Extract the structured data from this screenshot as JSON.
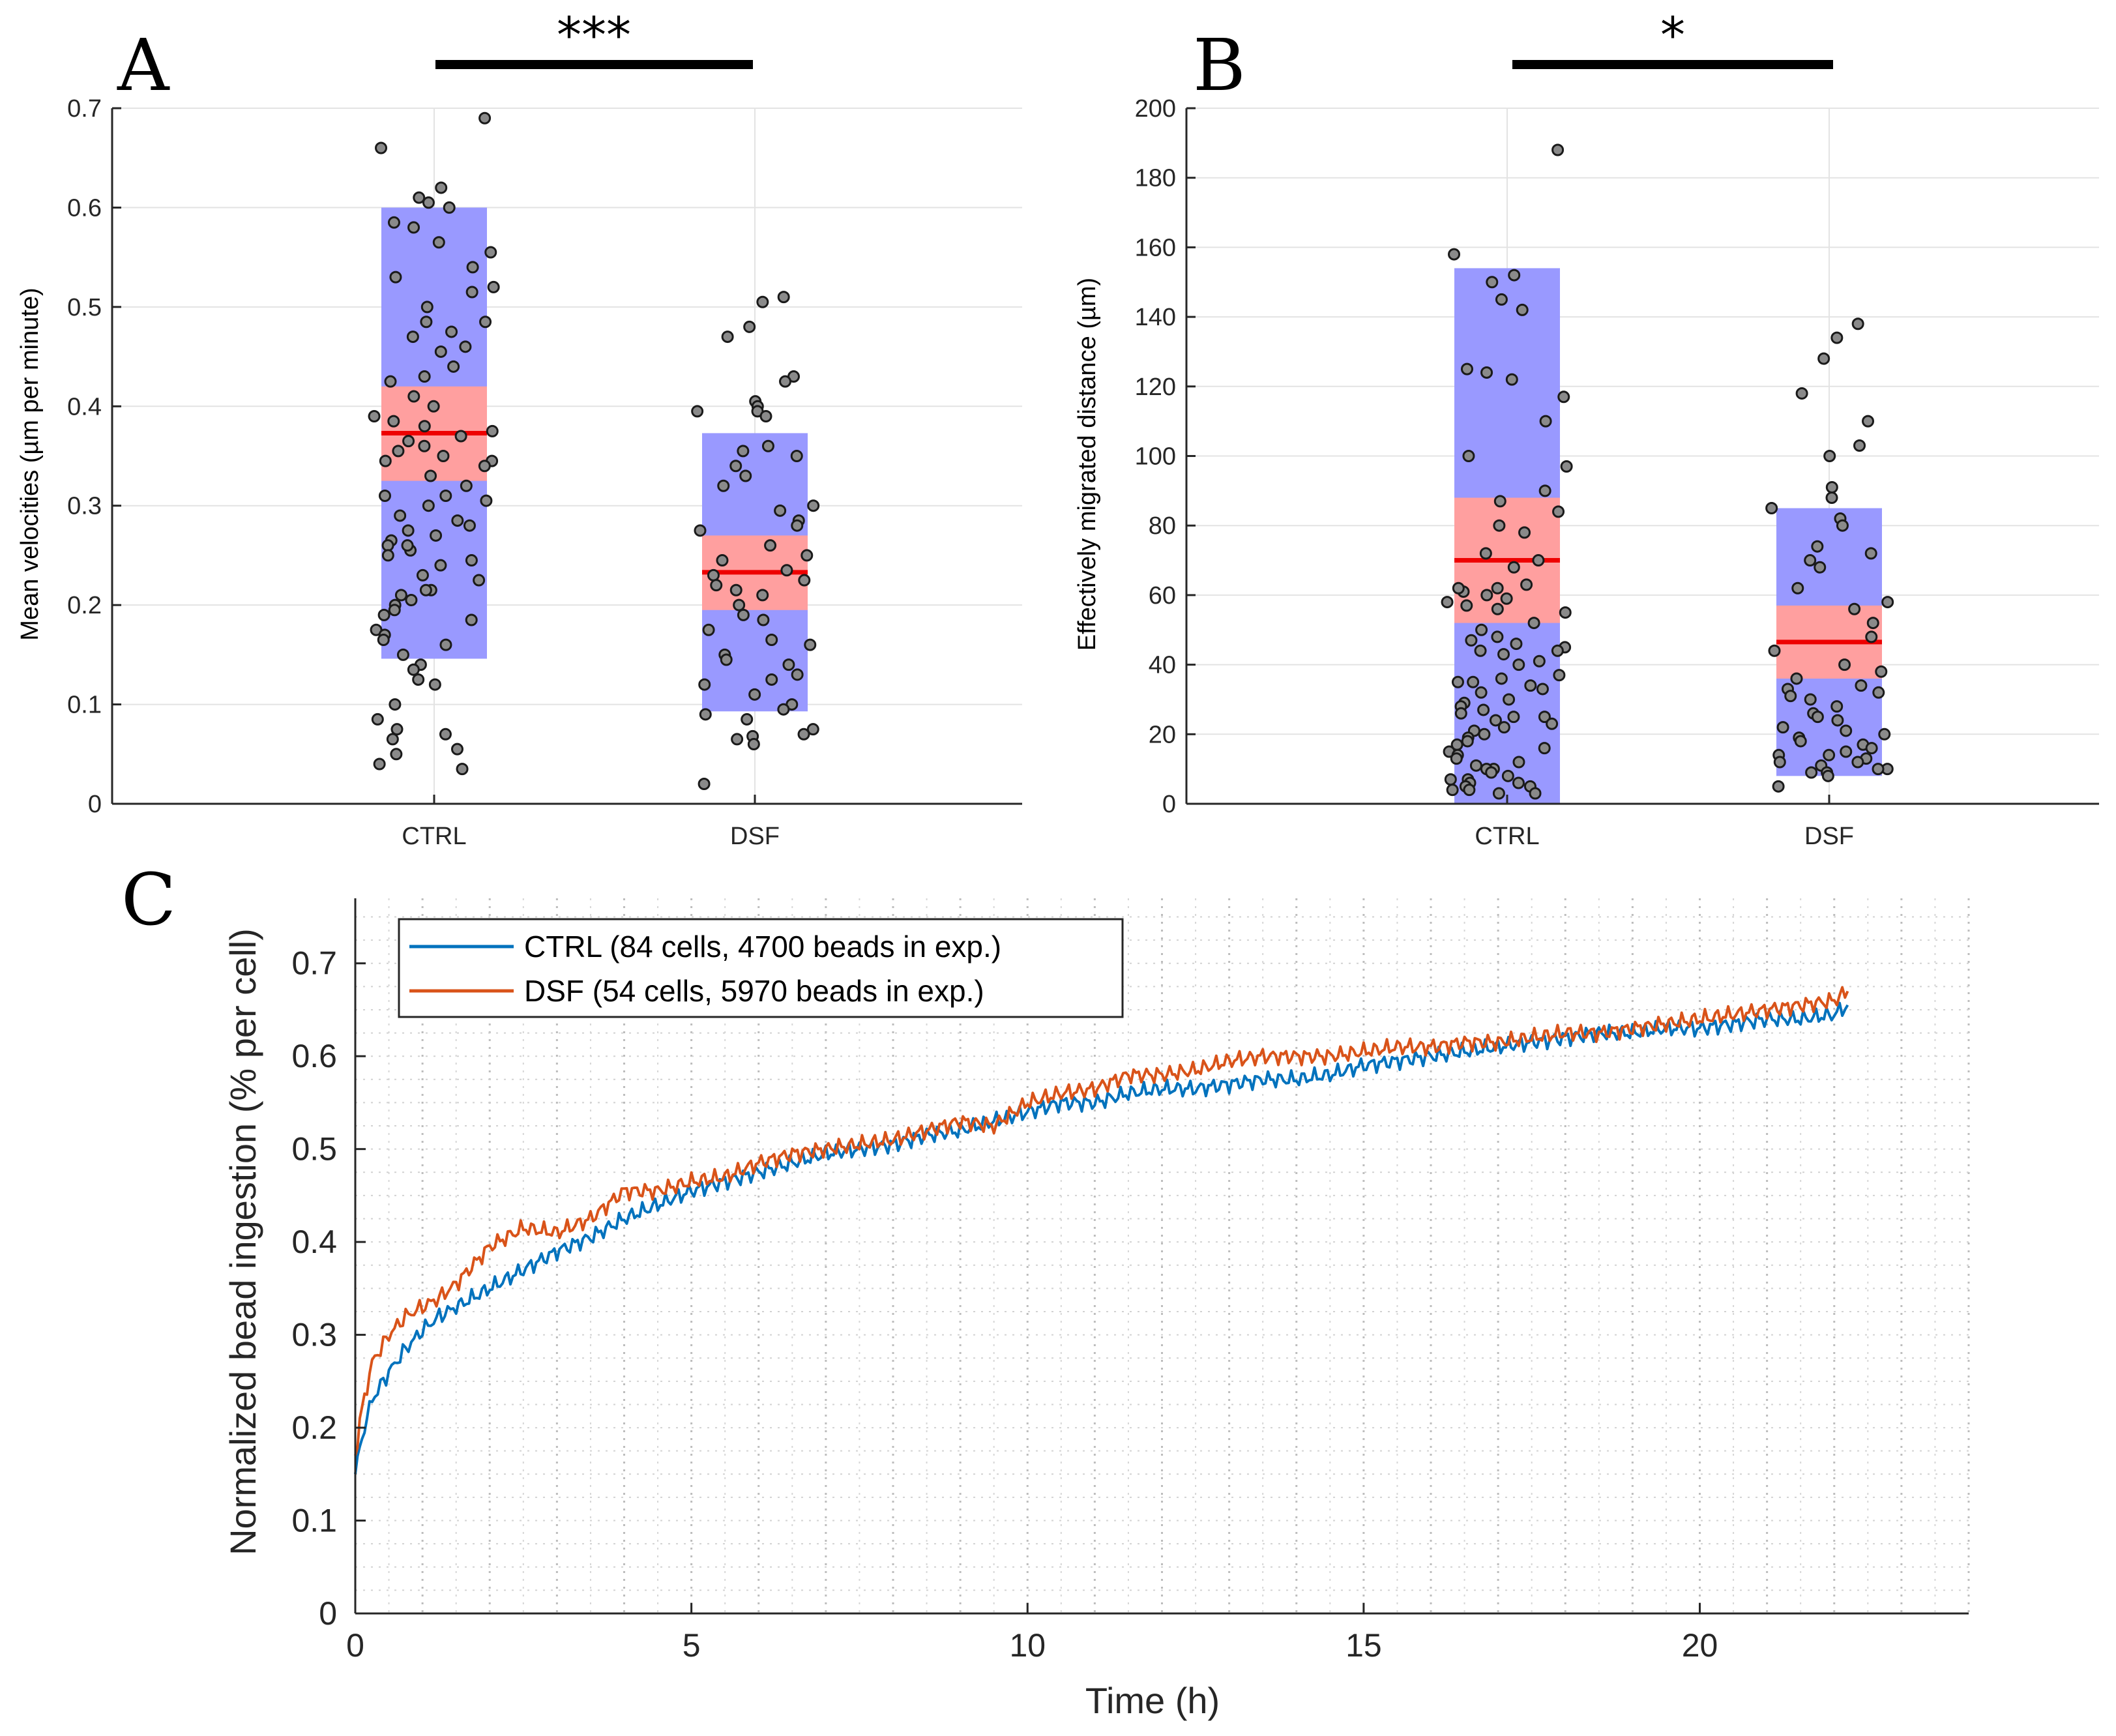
{
  "panels": [
    {
      "letter": "A",
      "significance": "***",
      "chart_data": {
        "type": "box-swarm",
        "categories": [
          "CTRL",
          "DSF"
        ],
        "ylabel": "Mean velocities (µm per minute)",
        "ylim": [
          0,
          0.7
        ],
        "yticks": [
          0,
          0.1,
          0.2,
          0.3,
          0.4,
          0.5,
          0.6,
          0.7
        ],
        "grid": true,
        "groups": [
          {
            "name": "CTRL",
            "mean": 0.373,
            "ci": [
              0.325,
              0.42
            ],
            "sd_range": [
              0.146,
              0.6
            ],
            "points": [
              0.69,
              0.66,
              0.62,
              0.61,
              0.605,
              0.6,
              0.585,
              0.58,
              0.565,
              0.555,
              0.54,
              0.53,
              0.52,
              0.515,
              0.5,
              0.485,
              0.485,
              0.475,
              0.47,
              0.46,
              0.455,
              0.44,
              0.43,
              0.425,
              0.41,
              0.4,
              0.39,
              0.385,
              0.38,
              0.375,
              0.37,
              0.365,
              0.36,
              0.355,
              0.35,
              0.345,
              0.34,
              0.33,
              0.32,
              0.31,
              0.305,
              0.3,
              0.29,
              0.285,
              0.28,
              0.275,
              0.27,
              0.265,
              0.26,
              0.255,
              0.25,
              0.245,
              0.24,
              0.23,
              0.225,
              0.215,
              0.21,
              0.205,
              0.2,
              0.195,
              0.19,
              0.185,
              0.175,
              0.17,
              0.165,
              0.16,
              0.15,
              0.14,
              0.135,
              0.125,
              0.12,
              0.1,
              0.085,
              0.075,
              0.07,
              0.065,
              0.055,
              0.05,
              0.04,
              0.035,
              0.215,
              0.31,
              0.26,
              0.345
            ]
          },
          {
            "name": "DSF",
            "mean": 0.233,
            "ci": [
              0.195,
              0.27
            ],
            "sd_range": [
              0.093,
              0.373
            ],
            "points": [
              0.51,
              0.505,
              0.48,
              0.47,
              0.43,
              0.425,
              0.405,
              0.4,
              0.395,
              0.395,
              0.39,
              0.36,
              0.355,
              0.35,
              0.34,
              0.33,
              0.32,
              0.3,
              0.295,
              0.285,
              0.28,
              0.275,
              0.26,
              0.25,
              0.245,
              0.235,
              0.23,
              0.225,
              0.22,
              0.215,
              0.21,
              0.2,
              0.19,
              0.185,
              0.175,
              0.165,
              0.16,
              0.15,
              0.145,
              0.14,
              0.13,
              0.125,
              0.12,
              0.11,
              0.1,
              0.095,
              0.09,
              0.085,
              0.075,
              0.07,
              0.068,
              0.065,
              0.06,
              0.02
            ]
          }
        ]
      }
    },
    {
      "letter": "B",
      "significance": "*",
      "chart_data": {
        "type": "box-swarm",
        "categories": [
          "CTRL",
          "DSF"
        ],
        "ylabel": "Effectively migrated distance (µm)",
        "ylim": [
          0,
          200
        ],
        "yticks": [
          0,
          20,
          40,
          60,
          80,
          100,
          120,
          140,
          160,
          180,
          200
        ],
        "grid": true,
        "groups": [
          {
            "name": "CTRL",
            "mean": 70,
            "ci": [
              52,
              88
            ],
            "sd_range": [
              0,
              154
            ],
            "points": [
              188,
              158,
              152,
              150,
              145,
              142,
              125,
              124,
              122,
              117,
              110,
              100,
              97,
              90,
              87,
              84,
              80,
              78,
              72,
              70,
              68,
              63,
              62,
              61,
              60,
              59,
              58,
              57,
              56,
              55,
              52,
              50,
              48,
              47,
              46,
              45,
              44,
              43,
              41,
              40,
              37,
              36,
              35,
              34,
              33,
              32,
              30,
              29,
              28,
              27,
              26,
              25,
              25,
              24,
              23,
              22,
              21,
              20,
              19,
              18,
              17,
              16,
              15,
              14,
              13,
              12,
              11,
              10,
              10,
              9,
              8,
              7,
              7,
              6,
              6,
              5,
              5,
              4,
              4,
              3,
              3,
              35,
              44,
              62
            ]
          },
          {
            "name": "DSF",
            "mean": 46.5,
            "ci": [
              36,
              57
            ],
            "sd_range": [
              8,
              85
            ],
            "points": [
              138,
              134,
              128,
              118,
              110,
              103,
              100,
              91,
              88,
              85,
              82,
              80,
              74,
              72,
              70,
              68,
              62,
              58,
              56,
              52,
              48,
              44,
              40,
              38,
              36,
              34,
              33,
              32,
              31,
              30,
              28,
              26,
              25,
              24,
              22,
              21,
              20,
              19,
              18,
              17,
              16,
              15,
              14,
              14,
              13,
              12,
              12,
              11,
              10,
              10,
              9,
              9,
              8,
              5
            ]
          }
        ]
      }
    },
    {
      "letter": "C",
      "chart_data": {
        "type": "line",
        "xlabel": "Time (h)",
        "ylabel": "Normalized bead ingestion (% per cell)",
        "xlim": [
          0,
          24
        ],
        "ylim": [
          0,
          0.77
        ],
        "xticks": [
          0,
          5,
          10,
          15,
          20
        ],
        "yticks": [
          0,
          0.1,
          0.2,
          0.3,
          0.4,
          0.5,
          0.6,
          0.7
        ],
        "grid": "dotted major and minor",
        "legend_position": "top-left",
        "series": [
          {
            "name": "CTRL (84 cells, 4700 beads in exp.)",
            "color": "#0072BD",
            "x": [
              0,
              0.1,
              0.25,
              0.5,
              0.75,
              1,
              1.25,
              1.5,
              2,
              2.5,
              3,
              3.5,
              4,
              4.5,
              5,
              5.5,
              6,
              6.5,
              7,
              7.5,
              8,
              8.5,
              9,
              9.5,
              10,
              10.5,
              11,
              11.5,
              12,
              12.5,
              13,
              13.5,
              14,
              14.5,
              15,
              15.5,
              16,
              16.5,
              17,
              17.5,
              18,
              18.5,
              19,
              19.5,
              20,
              20.5,
              21,
              21.5,
              22,
              22.2
            ],
            "y": [
              0.15,
              0.19,
              0.23,
              0.26,
              0.285,
              0.305,
              0.32,
              0.33,
              0.35,
              0.37,
              0.39,
              0.405,
              0.425,
              0.44,
              0.455,
              0.465,
              0.475,
              0.485,
              0.495,
              0.5,
              0.505,
              0.515,
              0.52,
              0.53,
              0.54,
              0.55,
              0.55,
              0.56,
              0.565,
              0.565,
              0.57,
              0.575,
              0.575,
              0.58,
              0.59,
              0.595,
              0.6,
              0.605,
              0.61,
              0.615,
              0.62,
              0.625,
              0.625,
              0.63,
              0.63,
              0.635,
              0.64,
              0.64,
              0.645,
              0.655
            ]
          },
          {
            "name": "DSF (54 cells, 5970 beads in exp.)",
            "color": "#D95319",
            "x": [
              0,
              0.1,
              0.25,
              0.5,
              0.75,
              1,
              1.25,
              1.5,
              2,
              2.5,
              3,
              3.5,
              4,
              4.5,
              5,
              5.5,
              6,
              6.5,
              7,
              7.5,
              8,
              8.5,
              9,
              9.5,
              10,
              10.5,
              11,
              11.5,
              12,
              12.5,
              13,
              13.5,
              14,
              14.5,
              15,
              15.5,
              16,
              16.5,
              17,
              17.5,
              18,
              18.5,
              19,
              19.5,
              20,
              20.5,
              21,
              21.5,
              22,
              22.2
            ],
            "y": [
              0.17,
              0.22,
              0.27,
              0.3,
              0.32,
              0.33,
              0.34,
              0.355,
              0.395,
              0.415,
              0.41,
              0.425,
              0.455,
              0.455,
              0.465,
              0.47,
              0.485,
              0.495,
              0.5,
              0.505,
              0.51,
              0.52,
              0.53,
              0.525,
              0.55,
              0.56,
              0.565,
              0.58,
              0.58,
              0.585,
              0.595,
              0.6,
              0.6,
              0.6,
              0.605,
              0.61,
              0.61,
              0.615,
              0.615,
              0.62,
              0.625,
              0.625,
              0.63,
              0.635,
              0.64,
              0.645,
              0.65,
              0.655,
              0.66,
              0.67
            ]
          }
        ]
      }
    }
  ]
}
